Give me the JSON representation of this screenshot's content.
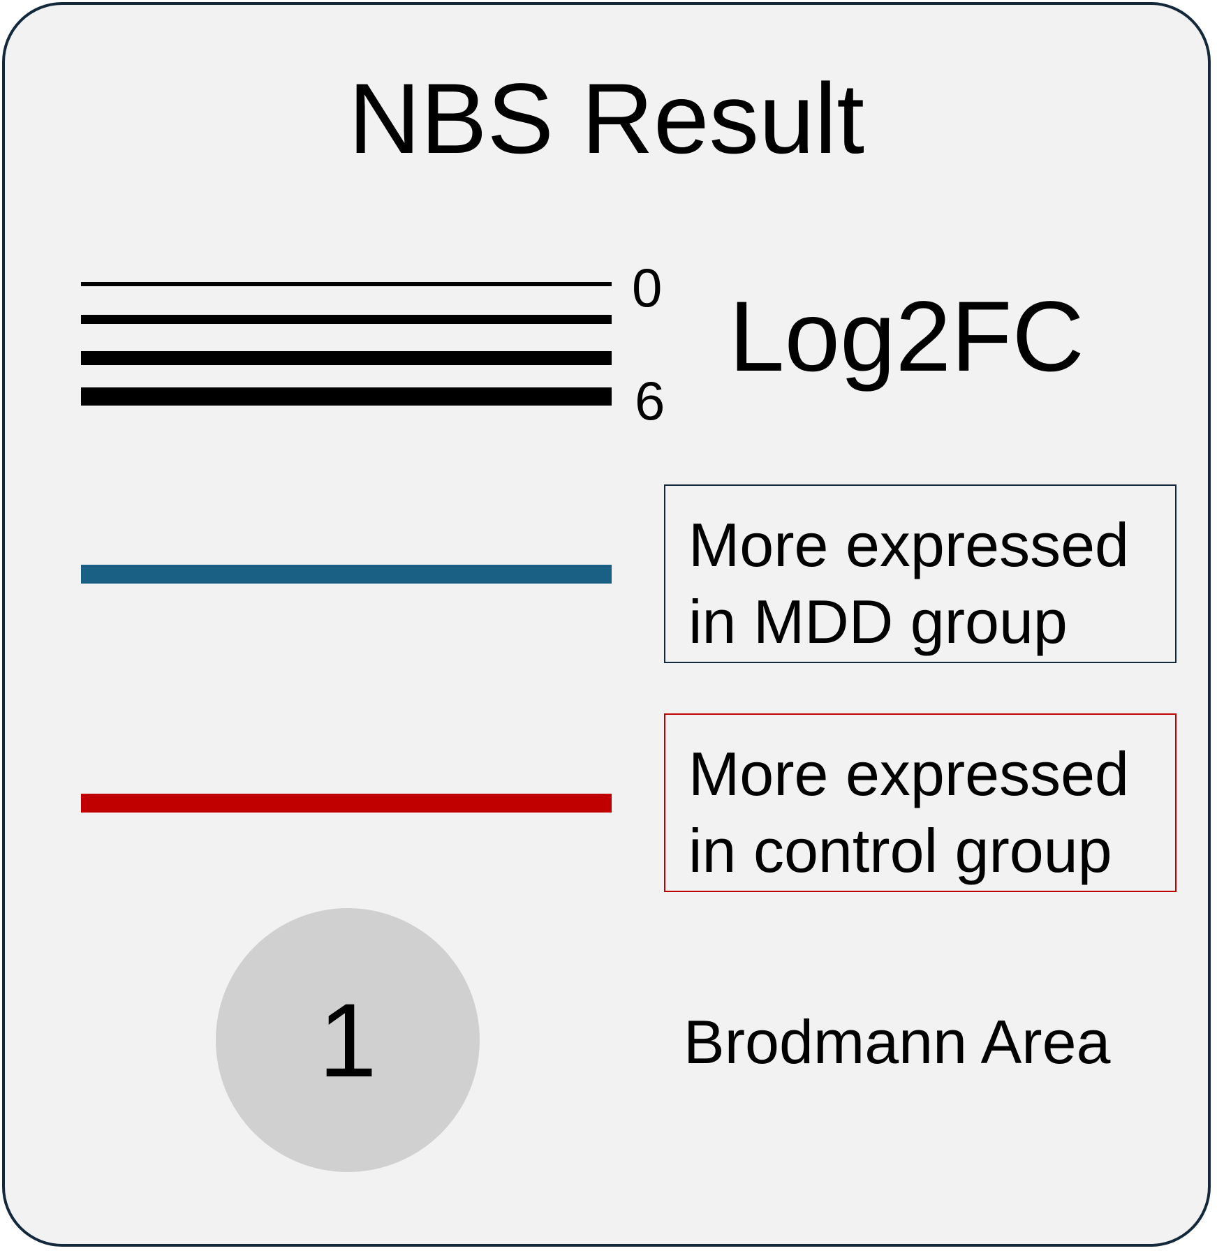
{
  "title": "NBS Result",
  "width_legend": {
    "label": "Log2FC",
    "min_label": "0",
    "max_label": "6",
    "color": "#000000"
  },
  "color_legend": [
    {
      "line1": "More expressed",
      "line2": "in MDD group",
      "color": "#1a6084"
    },
    {
      "line1": "More expressed",
      "line2": "in control group",
      "color": "#c00000"
    }
  ],
  "node_legend": {
    "node_number": "1",
    "label": "Brodmann Area",
    "fill": "#d0d0d0"
  },
  "panel": {
    "background": "#f2f2f2",
    "border": "#13283a"
  }
}
